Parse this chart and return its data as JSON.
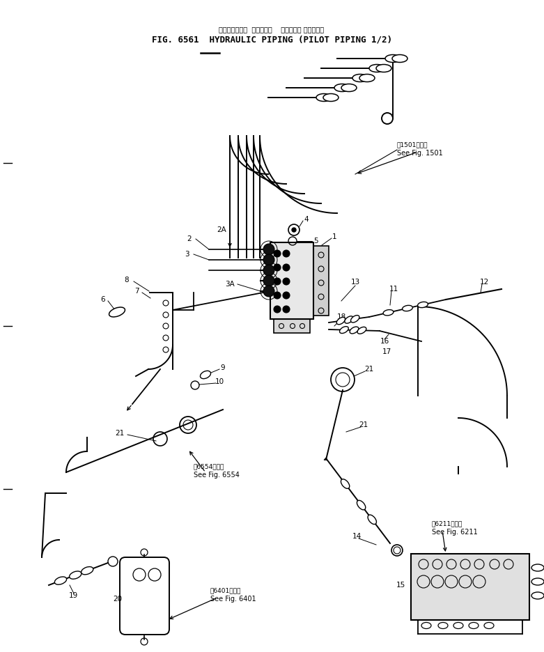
{
  "title_jp": "ハイドロリック  パイピング    パイロット パイピング",
  "title_en": "FIG. 6561  HYDRAULIC PIPING (PILOT PIPING 1/2)",
  "bg_color": "#ffffff",
  "lc": "#000000",
  "tc": "#000000",
  "fig_width": 7.81,
  "fig_height": 9.36,
  "see_fig_1501_jp": "第1501図参照",
  "see_fig_1501_en": "See Fig. 1501",
  "see_fig_6554_jp": "第6554図参照",
  "see_fig_6554_en": "See Fig. 6554",
  "see_fig_6401_jp": "第6401図参照",
  "see_fig_6401_en": "See Fig. 6401",
  "see_fig_6211_jp": "第6211図参照",
  "see_fig_6211_en": "See Fig. 6211"
}
